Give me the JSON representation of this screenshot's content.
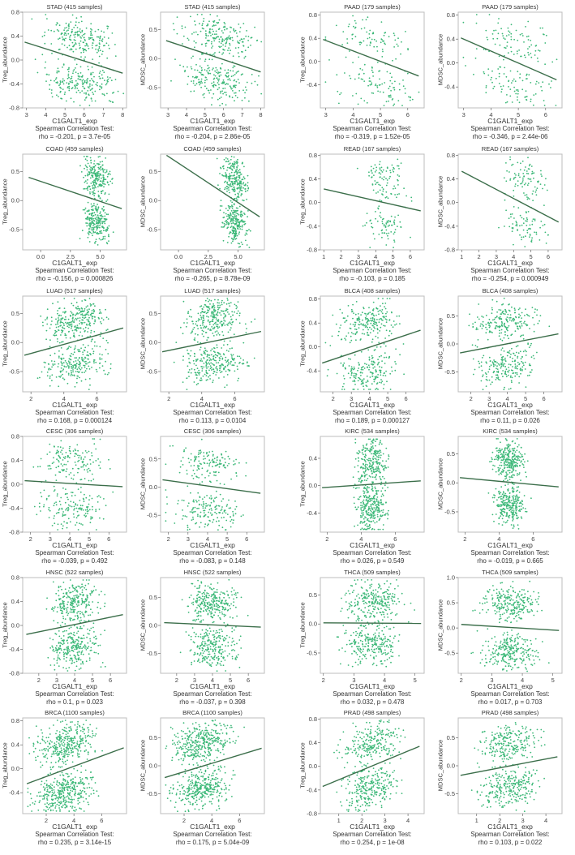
{
  "figure": {
    "x_axis_label": "C1GALT1_exp",
    "stat_test_label": "Spearman Correlation Test:",
    "colors": {
      "point": "#3cb878",
      "regression": "#3b6e4a",
      "frame": "#bdbdbd",
      "text": "#333333"
    }
  },
  "chart_data": [
    {
      "type": "scatter",
      "title": "STAD (415 samples)",
      "cancer": "STAD",
      "n": 415,
      "ylabel": "Treg_abundance",
      "xlabel": "C1GALT1_exp",
      "xticks": [
        3,
        4,
        5,
        6,
        7,
        8
      ],
      "yticks": [
        -0.8,
        -0.4,
        0.0,
        0.4,
        0.8
      ],
      "ytick_labels": [
        "-0.8",
        "-0.4",
        "0.0",
        "0.4",
        "0.8"
      ],
      "xlim": [
        2.8,
        8.2
      ],
      "ylim": [
        -0.8,
        0.8
      ],
      "fit": [
        [
          2.9,
          0.3
        ],
        [
          8.0,
          -0.22
        ]
      ],
      "rho": -0.201,
      "p": "3.7e-05",
      "stat": "rho = -0.201, p = 3.7e-05",
      "center": 5.7,
      "spread": 0.9
    },
    {
      "type": "scatter",
      "title": "STAD (415 samples)",
      "cancer": "STAD",
      "n": 415,
      "ylabel": "MDSC_abundance",
      "xlabel": "C1GALT1_exp",
      "xticks": [
        3,
        4,
        5,
        6,
        7,
        8
      ],
      "yticks": [
        -0.5,
        0.0,
        0.5
      ],
      "ytick_labels": [
        "-0.5",
        "0.0",
        "0.5"
      ],
      "xlim": [
        2.6,
        8.2
      ],
      "ylim": [
        -0.85,
        0.8
      ],
      "fit": [
        [
          2.9,
          0.31
        ],
        [
          8.0,
          -0.23
        ]
      ],
      "rho": -0.204,
      "p": "2.86e-05",
      "stat": "rho = -0.204, p = 2.86e-05",
      "center": 5.7,
      "spread": 0.9
    },
    {
      "type": "scatter",
      "title": "PAAD (179 samples)",
      "cancer": "PAAD",
      "n": 179,
      "ylabel": "Treg_abundance",
      "xlabel": "C1GALT1_exp",
      "xticks": [
        3,
        4,
        5,
        6
      ],
      "yticks": [
        -0.4,
        0.0,
        0.4,
        0.8
      ],
      "ytick_labels": [
        "-0.4",
        "0.0",
        "0.4",
        "0.8"
      ],
      "xlim": [
        2.8,
        6.6
      ],
      "ylim": [
        -0.8,
        0.85
      ],
      "fit": [
        [
          2.9,
          0.38
        ],
        [
          6.4,
          -0.25
        ]
      ],
      "rho": -0.319,
      "p": "1.52e-05",
      "stat": "rho = -0.319, p = 1.52e-05",
      "center": 4.8,
      "spread": 0.7
    },
    {
      "type": "scatter",
      "title": "PAAD (179 samples)",
      "cancer": "PAAD",
      "n": 179,
      "ylabel": "MDSC_abundance",
      "xlabel": "C1GALT1_exp",
      "xticks": [
        3,
        4,
        5,
        6
      ],
      "yticks": [
        -0.4,
        0.0,
        0.4,
        0.8
      ],
      "ytick_labels": [
        "-0.4",
        "0.0",
        "0.4",
        "0.8"
      ],
      "xlim": [
        2.8,
        6.6
      ],
      "ylim": [
        -0.75,
        0.85
      ],
      "fit": [
        [
          2.9,
          0.42
        ],
        [
          6.4,
          -0.28
        ]
      ],
      "rho": -0.346,
      "p": "2.44e-06",
      "stat": "rho = -0.346, p = 2.44e-06",
      "center": 4.8,
      "spread": 0.7
    },
    {
      "type": "scatter",
      "title": "COAD (459 samples)",
      "cancer": "COAD",
      "n": 459,
      "ylabel": "Treg_abundance",
      "xlabel": "C1GALT1_exp",
      "xticks": [
        0.0,
        2.5,
        5.0
      ],
      "yticks": [
        -0.5,
        0.0,
        0.5
      ],
      "ytick_labels": [
        "-0.5",
        "0.0",
        "0.5"
      ],
      "xlim": [
        -1.5,
        7.2
      ],
      "ylim": [
        -0.85,
        0.8
      ],
      "fit": [
        [
          -1.0,
          0.4
        ],
        [
          6.8,
          -0.14
        ]
      ],
      "rho": -0.156,
      "p": "0.000826",
      "stat": "rho = -0.156, p = 0.000826",
      "center": 4.7,
      "spread": 0.55
    },
    {
      "type": "scatter",
      "title": "COAD (459 samples)",
      "cancer": "COAD",
      "n": 459,
      "ylabel": "MDSC_abundance",
      "xlabel": "C1GALT1_exp",
      "xticks": [
        0.0,
        2.5,
        5.0
      ],
      "yticks": [
        -0.5,
        0.0,
        0.5
      ],
      "ytick_labels": [
        "-0.5",
        "0.0",
        "0.5"
      ],
      "xlim": [
        -1.5,
        7.2
      ],
      "ylim": [
        -0.85,
        0.8
      ],
      "fit": [
        [
          -1.0,
          0.78
        ],
        [
          6.8,
          -0.28
        ]
      ],
      "rho": -0.265,
      "p": "8.78e-09",
      "stat": "rho = -0.265, p = 8.78e-09",
      "center": 4.7,
      "spread": 0.55
    },
    {
      "type": "scatter",
      "title": "READ (167 samples)",
      "cancer": "READ",
      "n": 167,
      "ylabel": "Treg_abundance",
      "xlabel": "C1GALT1_exp",
      "xticks": [
        1,
        2,
        3,
        4,
        5,
        6
      ],
      "yticks": [
        -0.8,
        -0.4,
        0.0,
        0.4,
        0.8
      ],
      "ytick_labels": [
        "-0.8",
        "-0.4",
        "0.0",
        "0.4",
        "0.8"
      ],
      "xlim": [
        0.8,
        6.8
      ],
      "ylim": [
        -0.8,
        0.82
      ],
      "fit": [
        [
          1.0,
          0.23
        ],
        [
          6.6,
          -0.14
        ]
      ],
      "rho": -0.103,
      "p": "0.185",
      "stat": "rho = -0.103, p = 0.185",
      "center": 4.6,
      "spread": 0.6
    },
    {
      "type": "scatter",
      "title": "READ (167 samples)",
      "cancer": "READ",
      "n": 167,
      "ylabel": "MDSC_abundance",
      "xlabel": "C1GALT1_exp",
      "xticks": [
        1,
        2,
        3,
        4,
        5,
        6
      ],
      "yticks": [
        -0.8,
        -0.4,
        0.0,
        0.4,
        0.8
      ],
      "ytick_labels": [
        "-0.8",
        "-0.4",
        "0.0",
        "0.4",
        "0.8"
      ],
      "xlim": [
        0.8,
        6.8
      ],
      "ylim": [
        -0.8,
        0.82
      ],
      "fit": [
        [
          1.0,
          0.53
        ],
        [
          6.6,
          -0.33
        ]
      ],
      "rho": -0.254,
      "p": "0.000949",
      "stat": "rho = -0.254, p = 0.000949",
      "center": 4.6,
      "spread": 0.6
    },
    {
      "type": "scatter",
      "title": "LUAD (517 samples)",
      "cancer": "LUAD",
      "n": 517,
      "ylabel": "Treg_abundance",
      "xlabel": "C1GALT1_exp",
      "xticks": [
        2,
        4,
        6
      ],
      "yticks": [
        -0.5,
        0.0,
        0.5
      ],
      "ytick_labels": [
        "-0.5",
        "0.0",
        "0.5"
      ],
      "xlim": [
        1.5,
        7.8
      ],
      "ylim": [
        -0.85,
        0.8
      ],
      "fit": [
        [
          1.6,
          -0.22
        ],
        [
          7.6,
          0.25
        ]
      ],
      "rho": 0.168,
      "p": "0.000124",
      "stat": "rho = 0.168, p = 0.000124",
      "center": 4.7,
      "spread": 0.9
    },
    {
      "type": "scatter",
      "title": "LUAD (517 samples)",
      "cancer": "LUAD",
      "n": 517,
      "ylabel": "MDSC_abundance",
      "xlabel": "C1GALT1_exp",
      "xticks": [
        2,
        4,
        6
      ],
      "yticks": [
        -0.5,
        0.0,
        0.5
      ],
      "ytick_labels": [
        "-0.5",
        "0.0",
        "0.5"
      ],
      "xlim": [
        1.5,
        7.8
      ],
      "ylim": [
        -0.85,
        0.8
      ],
      "fit": [
        [
          1.6,
          -0.16
        ],
        [
          7.6,
          0.19
        ]
      ],
      "rho": 0.113,
      "p": "0.0104",
      "stat": "rho = 0.113, p = 0.0104",
      "center": 4.7,
      "spread": 0.9
    },
    {
      "type": "scatter",
      "title": "BLCA (408 samples)",
      "cancer": "BLCA",
      "n": 408,
      "ylabel": "Treg_abundance",
      "xlabel": "C1GALT1_exp",
      "xticks": [
        2,
        3,
        4,
        5,
        6
      ],
      "yticks": [
        -0.4,
        0.0,
        0.4,
        0.8
      ],
      "ytick_labels": [
        "-0.4",
        "0.0",
        "0.4",
        "0.8"
      ],
      "xlim": [
        1.3,
        7.0
      ],
      "ylim": [
        -0.75,
        0.85
      ],
      "fit": [
        [
          1.4,
          -0.27
        ],
        [
          6.8,
          0.28
        ]
      ],
      "rho": 0.189,
      "p": "0.000127",
      "stat": "rho = 0.189, p = 0.000127",
      "center": 3.9,
      "spread": 0.8
    },
    {
      "type": "scatter",
      "title": "BLCA (408 samples)",
      "cancer": "BLCA",
      "n": 408,
      "ylabel": "MDSC_abundance",
      "xlabel": "C1GALT1_exp",
      "xticks": [
        2,
        3,
        4,
        5,
        6
      ],
      "yticks": [
        -0.5,
        0.0,
        0.5
      ],
      "ytick_labels": [
        "-0.5",
        "0.0",
        "0.5"
      ],
      "xlim": [
        1.3,
        7.0
      ],
      "ylim": [
        -0.85,
        0.85
      ],
      "fit": [
        [
          1.4,
          -0.16
        ],
        [
          6.8,
          0.18
        ]
      ],
      "rho": 0.11,
      "p": "0.026",
      "stat": "rho = 0.11, p = 0.026",
      "center": 3.9,
      "spread": 0.8
    },
    {
      "type": "scatter",
      "title": "CESC (306 samples)",
      "cancer": "CESC",
      "n": 306,
      "ylabel": "Treg_abundance",
      "xlabel": "C1GALT1_exp",
      "xticks": [
        2,
        3,
        4,
        5,
        6
      ],
      "yticks": [
        -0.8,
        -0.4,
        0.0,
        0.4,
        0.8
      ],
      "ytick_labels": [
        "-0.8",
        "-0.4",
        "0.0",
        "0.4",
        "0.8"
      ],
      "xlim": [
        1.6,
        6.9
      ],
      "ylim": [
        -0.8,
        0.8
      ],
      "fit": [
        [
          1.7,
          0.06
        ],
        [
          6.7,
          -0.04
        ]
      ],
      "rho": -0.039,
      "p": "0.492",
      "stat": "rho = -0.039, p = 0.492",
      "center": 4.0,
      "spread": 0.8
    },
    {
      "type": "scatter",
      "title": "CESC (306 samples)",
      "cancer": "CESC",
      "n": 306,
      "ylabel": "MDSC_abundance",
      "xlabel": "C1GALT1_exp",
      "xticks": [
        2,
        3,
        4,
        5,
        6
      ],
      "yticks": [
        -0.5,
        0.0,
        0.5
      ],
      "ytick_labels": [
        "-0.5",
        "0.0",
        "0.5"
      ],
      "xlim": [
        1.6,
        6.9
      ],
      "ylim": [
        -0.8,
        0.9
      ],
      "fit": [
        [
          1.7,
          0.13
        ],
        [
          6.7,
          -0.11
        ]
      ],
      "rho": -0.083,
      "p": "0.148",
      "stat": "rho = -0.083, p = 0.148",
      "center": 4.0,
      "spread": 0.8
    },
    {
      "type": "scatter",
      "title": "KIRC (534 samples)",
      "cancer": "KIRC",
      "n": 534,
      "ylabel": "Treg_abundance",
      "xlabel": "C1GALT1_exp",
      "xticks": [
        2,
        4,
        6
      ],
      "yticks": [
        -0.4,
        0.0,
        0.4
      ],
      "ytick_labels": [
        "-0.4",
        "0.0",
        "0.4"
      ],
      "xlim": [
        1.6,
        7.7
      ],
      "ylim": [
        -0.68,
        0.72
      ],
      "fit": [
        [
          1.7,
          -0.03
        ],
        [
          7.5,
          0.07
        ]
      ],
      "rho": 0.026,
      "p": "0.549",
      "stat": "rho = 0.026, p = 0.549",
      "center": 4.6,
      "spread": 0.45
    },
    {
      "type": "scatter",
      "title": "KIRC (534 samples)",
      "cancer": "KIRC",
      "n": 534,
      "ylabel": "MDSC_abundance",
      "xlabel": "C1GALT1_exp",
      "xticks": [
        2,
        4,
        6
      ],
      "yticks": [
        -0.5,
        0.0,
        0.5
      ],
      "ytick_labels": [
        "-0.5",
        "0.0",
        "0.5"
      ],
      "xlim": [
        1.6,
        7.7
      ],
      "ylim": [
        -0.85,
        0.8
      ],
      "fit": [
        [
          1.7,
          0.09
        ],
        [
          7.5,
          -0.07
        ]
      ],
      "rho": -0.019,
      "p": "0.665",
      "stat": "rho = -0.019, p = 0.665",
      "center": 4.6,
      "spread": 0.45
    },
    {
      "type": "scatter",
      "title": "HNSC (522 samples)",
      "cancer": "HNSC",
      "n": 522,
      "ylabel": "Treg_abundance",
      "xlabel": "C1GALT1_exp",
      "xticks": [
        2,
        3,
        4,
        5,
        6
      ],
      "yticks": [
        -0.8,
        -0.4,
        0.0,
        0.4,
        0.8
      ],
      "ytick_labels": [
        "-0.8",
        "-0.4",
        "0.0",
        "0.4",
        "0.8"
      ],
      "xlim": [
        1.1,
        6.9
      ],
      "ylim": [
        -0.8,
        0.8
      ],
      "fit": [
        [
          1.3,
          -0.15
        ],
        [
          6.7,
          0.18
        ]
      ],
      "rho": 0.1,
      "p": "0.023",
      "stat": "rho = 0.1, p = 0.023",
      "center": 4.0,
      "spread": 0.65
    },
    {
      "type": "scatter",
      "title": "HNSC (522 samples)",
      "cancer": "HNSC",
      "n": 522,
      "ylabel": "MDSC_abundance",
      "xlabel": "C1GALT1_exp",
      "xticks": [
        2,
        3,
        4,
        5,
        6
      ],
      "yticks": [
        -0.5,
        0.0,
        0.5
      ],
      "ytick_labels": [
        "-0.5",
        "0.0",
        "0.5"
      ],
      "xlim": [
        1.1,
        6.9
      ],
      "ylim": [
        -0.85,
        0.85
      ],
      "fit": [
        [
          1.3,
          0.05
        ],
        [
          6.7,
          -0.03
        ]
      ],
      "rho": -0.037,
      "p": "0.398",
      "stat": "rho = -0.037, p = 0.398",
      "center": 4.0,
      "spread": 0.65
    },
    {
      "type": "scatter",
      "title": "THCA (509 samples)",
      "cancer": "THCA",
      "n": 509,
      "ylabel": "Treg_abundance",
      "xlabel": "C1GALT1_exp",
      "xticks": [
        2,
        3,
        4,
        5
      ],
      "yticks": [
        -0.5,
        0.0,
        0.5
      ],
      "ytick_labels": [
        "-0.5",
        "0.0",
        "0.5"
      ],
      "xlim": [
        1.9,
        5.3
      ],
      "ylim": [
        -0.85,
        0.8
      ],
      "fit": [
        [
          2.0,
          0.02
        ],
        [
          5.2,
          0.01
        ]
      ],
      "rho": 0.032,
      "p": "0.478",
      "stat": "rho = 0.032, p = 0.478",
      "center": 3.6,
      "spread": 0.45
    },
    {
      "type": "scatter",
      "title": "THCA (509 samples)",
      "cancer": "THCA",
      "n": 509,
      "ylabel": "MDSC_abundance",
      "xlabel": "C1GALT1_exp",
      "xticks": [
        2,
        3,
        4,
        5
      ],
      "yticks": [
        -0.5,
        0.0,
        0.5,
        1.0
      ],
      "ytick_labels": [
        "-0.5",
        "0.0",
        "0.5",
        "1.0"
      ],
      "xlim": [
        1.9,
        5.3
      ],
      "ylim": [
        -0.9,
        1.0
      ],
      "fit": [
        [
          2.0,
          0.07
        ],
        [
          5.2,
          -0.05
        ]
      ],
      "rho": 0.017,
      "p": "0.703",
      "stat": "rho = 0.017, p = 0.703",
      "center": 3.6,
      "spread": 0.45
    },
    {
      "type": "scatter",
      "title": "BRCA (1100 samples)",
      "cancer": "BRCA",
      "n": 1100,
      "ylabel": "Treg_abundance",
      "xlabel": "C1GALT1_exp",
      "xticks": [
        2,
        4,
        6
      ],
      "yticks": [
        -0.4,
        0.0,
        0.4,
        0.8
      ],
      "ytick_labels": [
        "-0.4",
        "0.0",
        "0.4",
        "0.8"
      ],
      "xlim": [
        0.3,
        7.8
      ],
      "ylim": [
        -0.75,
        0.85
      ],
      "fit": [
        [
          0.6,
          -0.25
        ],
        [
          7.6,
          0.35
        ]
      ],
      "rho": 0.235,
      "p": "3.14e-15",
      "stat": "rho = 0.235, p = 3.14e-15",
      "center": 3.3,
      "spread": 1.0
    },
    {
      "type": "scatter",
      "title": "BRCA (1100 samples)",
      "cancer": "BRCA",
      "n": 1100,
      "ylabel": "MDSC_abundance",
      "xlabel": "C1GALT1_exp",
      "xticks": [
        2,
        4,
        6
      ],
      "yticks": [
        -0.5,
        0.0,
        0.5
      ],
      "ytick_labels": [
        "-0.5",
        "0.0",
        "0.5"
      ],
      "xlim": [
        0.3,
        7.8
      ],
      "ylim": [
        -0.85,
        0.85
      ],
      "fit": [
        [
          0.6,
          -0.21
        ],
        [
          7.6,
          0.31
        ]
      ],
      "rho": 0.175,
      "p": "5.04e-09",
      "stat": "rho = 0.175, p = 5.04e-09",
      "center": 3.3,
      "spread": 1.0
    },
    {
      "type": "scatter",
      "title": "PRAD (498 samples)",
      "cancer": "PRAD",
      "n": 498,
      "ylabel": "Treg_abundance",
      "xlabel": "C1GALT1_exp",
      "xticks": [
        1,
        2,
        3,
        4
      ],
      "yticks": [
        -0.8,
        -0.4,
        0.0,
        0.4,
        0.8
      ],
      "ytick_labels": [
        "-0.8",
        "-0.4",
        "0.0",
        "0.4",
        "0.8"
      ],
      "xlim": [
        0.2,
        4.7
      ],
      "ylim": [
        -0.8,
        0.82
      ],
      "fit": [
        [
          0.3,
          -0.34
        ],
        [
          4.5,
          0.34
        ]
      ],
      "rho": 0.254,
      "p": "1e-08",
      "stat": "rho = 0.254, p = 1e-08",
      "center": 2.4,
      "spread": 0.6
    },
    {
      "type": "scatter",
      "title": "PRAD (498 samples)",
      "cancer": "PRAD",
      "n": 498,
      "ylabel": "MDSC_abundance",
      "xlabel": "C1GALT1_exp",
      "xticks": [
        1,
        2,
        3,
        4
      ],
      "yticks": [
        -0.5,
        0.0,
        0.5
      ],
      "ytick_labels": [
        "-0.5",
        "0.0",
        "0.5"
      ],
      "xlim": [
        0.2,
        4.7
      ],
      "ylim": [
        -0.85,
        0.85
      ],
      "fit": [
        [
          0.3,
          -0.17
        ],
        [
          4.5,
          0.16
        ]
      ],
      "rho": 0.103,
      "p": "0.022",
      "stat": "rho = 0.103, p = 0.022",
      "center": 2.4,
      "spread": 0.6
    }
  ]
}
